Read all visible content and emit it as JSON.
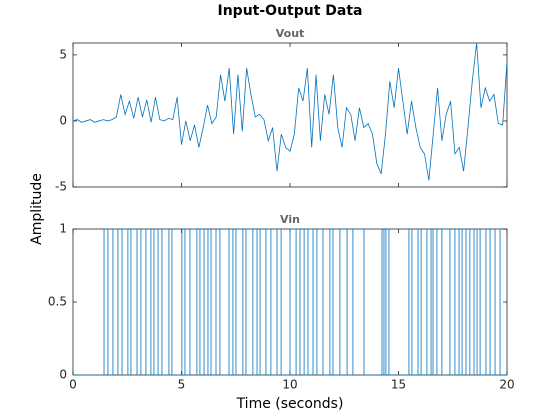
{
  "figure": {
    "title": "Input-Output Data",
    "xlabel": "Time (seconds)",
    "ylabel": "Amplitude"
  },
  "chart_data": [
    {
      "type": "line",
      "title": "Vout",
      "color": "#0072bd",
      "x": [
        0,
        0.2,
        0.4,
        0.6,
        0.8,
        1,
        1.2,
        1.4,
        1.6,
        1.8,
        2,
        2.2,
        2.4,
        2.6,
        2.8,
        3,
        3.2,
        3.4,
        3.6,
        3.8,
        4,
        4.2,
        4.4,
        4.6,
        4.8,
        5,
        5.2,
        5.4,
        5.6,
        5.8,
        6,
        6.2,
        6.4,
        6.6,
        6.8,
        7,
        7.2,
        7.4,
        7.6,
        7.8,
        8,
        8.2,
        8.4,
        8.6,
        8.8,
        9,
        9.2,
        9.4,
        9.6,
        9.8,
        10,
        10.2,
        10.4,
        10.6,
        10.8,
        11,
        11.2,
        11.4,
        11.6,
        11.8,
        12,
        12.2,
        12.4,
        12.6,
        12.8,
        13,
        13.2,
        13.4,
        13.6,
        13.8,
        14,
        14.2,
        14.4,
        14.6,
        14.8,
        15,
        15.2,
        15.4,
        15.6,
        15.8,
        16,
        16.2,
        16.4,
        16.6,
        16.8,
        17,
        17.2,
        17.4,
        17.6,
        17.8,
        18,
        18.2,
        18.4,
        18.6,
        18.8,
        19,
        19.2,
        19.4,
        19.6,
        19.8,
        20
      ],
      "values": [
        0,
        0.1,
        -0.1,
        0,
        0.1,
        -0.1,
        0,
        0.1,
        0,
        0.1,
        0.3,
        2.0,
        0.5,
        1.5,
        0.2,
        1.8,
        0.3,
        1.6,
        -0.1,
        1.8,
        0.1,
        0,
        0.2,
        0.1,
        1.8,
        -1.8,
        0,
        -1.5,
        -0.3,
        -2.0,
        -0.5,
        1.2,
        -0.2,
        0.3,
        3.5,
        1.5,
        4.0,
        -1.0,
        3.5,
        -0.8,
        4.0,
        2.0,
        0.3,
        0.5,
        0.1,
        -1.5,
        -0.5,
        -3.8,
        -1.0,
        -2.0,
        -2.3,
        -1.0,
        2.5,
        1.5,
        4.0,
        -2.0,
        3.5,
        -1.5,
        2.0,
        0.5,
        3.5,
        -0.5,
        -2.0,
        1.0,
        0.5,
        -1.5,
        1.0,
        -0.5,
        -0.2,
        -1.0,
        -3.2,
        -4.0,
        -1.0,
        3.0,
        1.0,
        4.0,
        1.5,
        -1.0,
        1.5,
        -0.5,
        -2.0,
        -2.5,
        -4.5,
        -1.0,
        2.5,
        -1.5,
        0.5,
        1.5,
        -2.5,
        -2.0,
        -3.8,
        -0.5,
        3.0,
        5.9,
        1.0,
        2.5,
        1.5,
        2.0,
        -0.2,
        -0.3,
        4.5
      ],
      "xlim": [
        0,
        20
      ],
      "xticks": [
        0,
        5,
        10,
        15,
        20
      ],
      "xtick_labels": false,
      "ylim": [
        -5,
        5.9
      ],
      "yticks": [
        -5,
        0,
        5
      ]
    },
    {
      "type": "step",
      "title": "Vin",
      "color": "#0072bd",
      "x": [
        0,
        1.43,
        1.61,
        1.84,
        2.07,
        2.26,
        2.53,
        2.67,
        2.95,
        3.13,
        3.36,
        3.59,
        3.73,
        3.92,
        4.1,
        4.42,
        4.56,
        5.02,
        5.16,
        5.39,
        5.71,
        5.85,
        6.04,
        6.22,
        6.36,
        6.59,
        6.77,
        7.19,
        7.37,
        7.51,
        7.83,
        7.97,
        8.29,
        8.48,
        8.62,
        8.89,
        9.12,
        9.4,
        9.59,
        10.0,
        10.28,
        10.46,
        10.65,
        10.83,
        11.06,
        11.24,
        11.52,
        11.84,
        11.98,
        12.3,
        12.63,
        12.9,
        13.41,
        14.24,
        14.33,
        14.42,
        14.56,
        15.48,
        15.62,
        15.9,
        16.04,
        16.31,
        16.5,
        16.59,
        16.77,
        17.0,
        17.37,
        17.6,
        17.79,
        17.93,
        18.11,
        18.29,
        18.48,
        18.62,
        18.76,
        19.03,
        19.22,
        19.45,
        19.68,
        20
      ],
      "values": [
        0,
        1,
        0,
        1,
        0,
        1,
        0,
        1,
        0,
        1,
        0,
        1,
        0,
        1,
        0,
        1,
        0,
        1,
        0,
        1,
        0,
        1,
        0,
        1,
        0,
        1,
        0,
        1,
        0,
        1,
        0,
        1,
        0,
        1,
        0,
        1,
        0,
        1,
        0,
        1,
        0,
        1,
        0,
        1,
        0,
        1,
        0,
        1,
        0,
        1,
        0,
        1,
        0,
        1,
        0,
        1,
        0,
        1,
        0,
        1,
        0,
        1,
        0,
        1,
        0,
        1,
        0,
        1,
        0,
        1,
        0,
        1,
        0,
        1,
        0,
        1,
        0,
        1,
        0,
        0
      ],
      "xlim": [
        0,
        20
      ],
      "xticks": [
        0,
        5,
        10,
        15,
        20
      ],
      "xtick_labels": true,
      "ylim": [
        0,
        1
      ],
      "yticks": [
        0,
        0.5,
        1
      ]
    }
  ]
}
